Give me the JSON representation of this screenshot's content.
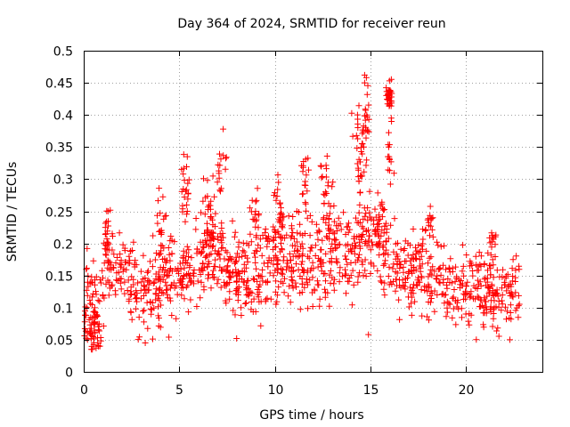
{
  "chart_data": {
    "type": "scatter",
    "title": "Day 364 of 2024, SRMTID for receiver reun",
    "xlabel": "GPS time / hours",
    "ylabel": "SRMTID / TECUs",
    "xlim": [
      0,
      24
    ],
    "ylim": [
      0,
      0.5
    ],
    "x_ticks": [
      0,
      5,
      10,
      15,
      20
    ],
    "x_tick_labels": [
      "0",
      "5",
      "10",
      "15",
      "20"
    ],
    "y_ticks": [
      0,
      0.05,
      0.1,
      0.15,
      0.2,
      0.25,
      0.3,
      0.35,
      0.4,
      0.45,
      0.5
    ],
    "y_tick_labels": [
      "0",
      "0.05",
      "0.1",
      "0.15",
      "0.2",
      "0.25",
      "0.3",
      "0.35",
      "0.4",
      "0.45",
      "0.5"
    ],
    "grid": true,
    "marker": "+",
    "series_color": "#ff0000",
    "x_range_of_data": [
      0,
      22.8
    ],
    "trend_anchor_x": [
      0,
      0.4,
      0.8,
      1.2,
      2,
      3,
      4,
      5,
      6,
      7,
      8,
      9,
      10,
      11,
      12,
      13,
      14,
      14.8,
      15.5,
      16.5,
      17.5,
      18.5,
      19.5,
      20.5,
      21.5,
      22.8
    ],
    "trend_anchor_y": [
      0.1,
      0.12,
      0.08,
      0.17,
      0.16,
      0.12,
      0.14,
      0.15,
      0.17,
      0.18,
      0.15,
      0.15,
      0.18,
      0.18,
      0.17,
      0.19,
      0.18,
      0.21,
      0.19,
      0.16,
      0.16,
      0.14,
      0.12,
      0.13,
      0.13,
      0.12
    ],
    "noise_spread": 0.045,
    "clusters": [
      {
        "x_center": 0.5,
        "x_spread": 0.25,
        "y_center": 0.06,
        "y_spread": 0.02,
        "count": 25
      },
      {
        "x_center": 1.2,
        "x_spread": 0.15,
        "y_center": 0.21,
        "y_spread": 0.03,
        "count": 20
      },
      {
        "x_center": 4.0,
        "x_spread": 0.2,
        "y_center": 0.23,
        "y_spread": 0.05,
        "count": 20
      },
      {
        "x_center": 5.3,
        "x_spread": 0.25,
        "y_center": 0.27,
        "y_spread": 0.06,
        "count": 25
      },
      {
        "x_center": 6.5,
        "x_spread": 0.4,
        "y_center": 0.24,
        "y_spread": 0.05,
        "count": 35
      },
      {
        "x_center": 7.2,
        "x_spread": 0.2,
        "y_center": 0.33,
        "y_spread": 0.04,
        "count": 15
      },
      {
        "x_center": 9.0,
        "x_spread": 0.2,
        "y_center": 0.24,
        "y_spread": 0.04,
        "count": 18
      },
      {
        "x_center": 10.2,
        "x_spread": 0.3,
        "y_center": 0.26,
        "y_spread": 0.06,
        "count": 25
      },
      {
        "x_center": 11.6,
        "x_spread": 0.2,
        "y_center": 0.29,
        "y_spread": 0.05,
        "count": 18
      },
      {
        "x_center": 12.7,
        "x_spread": 0.3,
        "y_center": 0.28,
        "y_spread": 0.05,
        "count": 25
      },
      {
        "x_center": 14.5,
        "x_spread": 0.3,
        "y_center": 0.34,
        "y_spread": 0.07,
        "count": 40
      },
      {
        "x_center": 14.8,
        "x_spread": 0.15,
        "y_center": 0.4,
        "y_spread": 0.04,
        "count": 15
      },
      {
        "x_center": 16.0,
        "x_spread": 0.12,
        "y_center": 0.43,
        "y_spread": 0.02,
        "count": 35
      },
      {
        "x_center": 16.0,
        "x_spread": 0.15,
        "y_center": 0.34,
        "y_spread": 0.04,
        "count": 15
      },
      {
        "x_center": 15.5,
        "x_spread": 0.25,
        "y_center": 0.24,
        "y_spread": 0.04,
        "count": 20
      },
      {
        "x_center": 18.1,
        "x_spread": 0.2,
        "y_center": 0.22,
        "y_spread": 0.03,
        "count": 15
      },
      {
        "x_center": 21.4,
        "x_spread": 0.2,
        "y_center": 0.2,
        "y_spread": 0.03,
        "count": 15
      }
    ],
    "notable_points": [
      {
        "x": 14.7,
        "y": 0.462
      },
      {
        "x": 14.7,
        "y": 0.45
      },
      {
        "x": 16.0,
        "y": 0.453
      },
      {
        "x": 7.3,
        "y": 0.378
      },
      {
        "x": 0.85,
        "y": 0.04
      },
      {
        "x": 0.9,
        "y": 0.048
      },
      {
        "x": 14.9,
        "y": 0.058
      },
      {
        "x": 8.0,
        "y": 0.052
      },
      {
        "x": 22.3,
        "y": 0.05
      }
    ],
    "count": 1300
  }
}
